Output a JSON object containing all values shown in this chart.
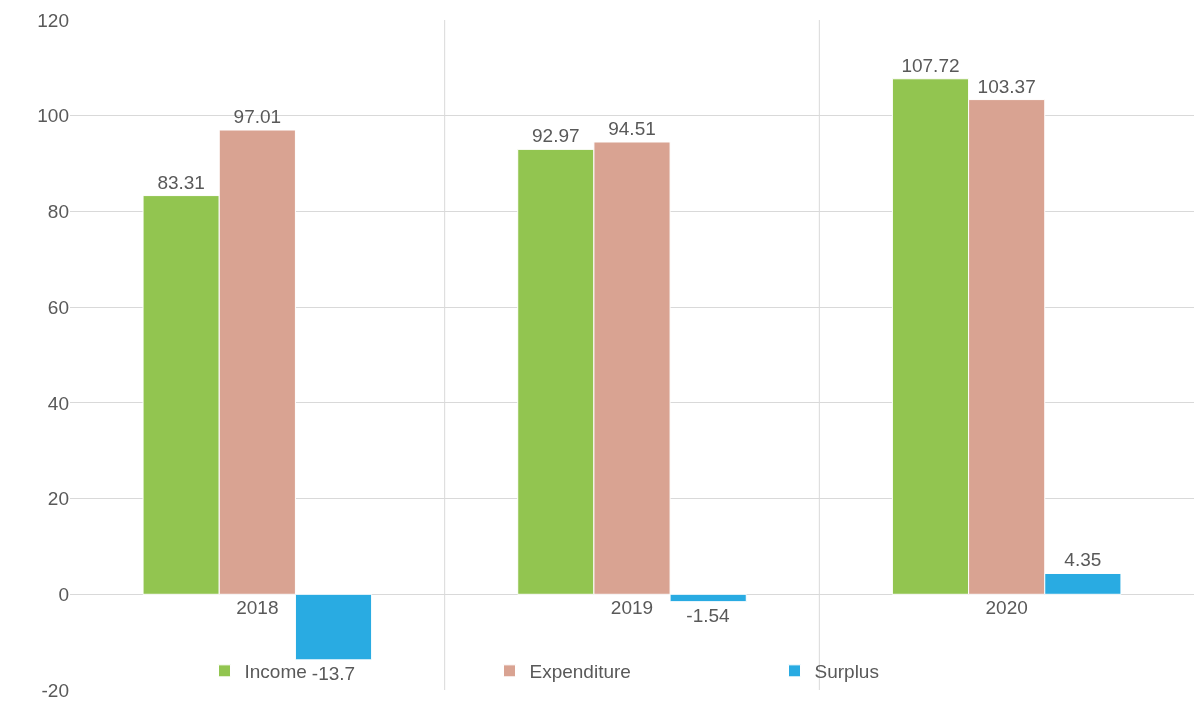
{
  "chart_data": {
    "type": "bar",
    "categories": [
      "2018",
      "2019",
      "2020"
    ],
    "series": [
      {
        "name": "Income",
        "color": "#92c550",
        "values": [
          83.31,
          92.97,
          107.72
        ]
      },
      {
        "name": "Expenditure",
        "color": "#d9a392",
        "values": [
          97.01,
          94.51,
          103.37
        ]
      },
      {
        "name": "Surplus",
        "color": "#29abe2",
        "values": [
          -13.7,
          -1.54,
          4.35
        ]
      }
    ],
    "ylim": [
      -20,
      120
    ],
    "yticks": [
      -20,
      0,
      20,
      40,
      60,
      80,
      100,
      120
    ],
    "grid": true,
    "legend": "bottom",
    "data_labels": true
  }
}
